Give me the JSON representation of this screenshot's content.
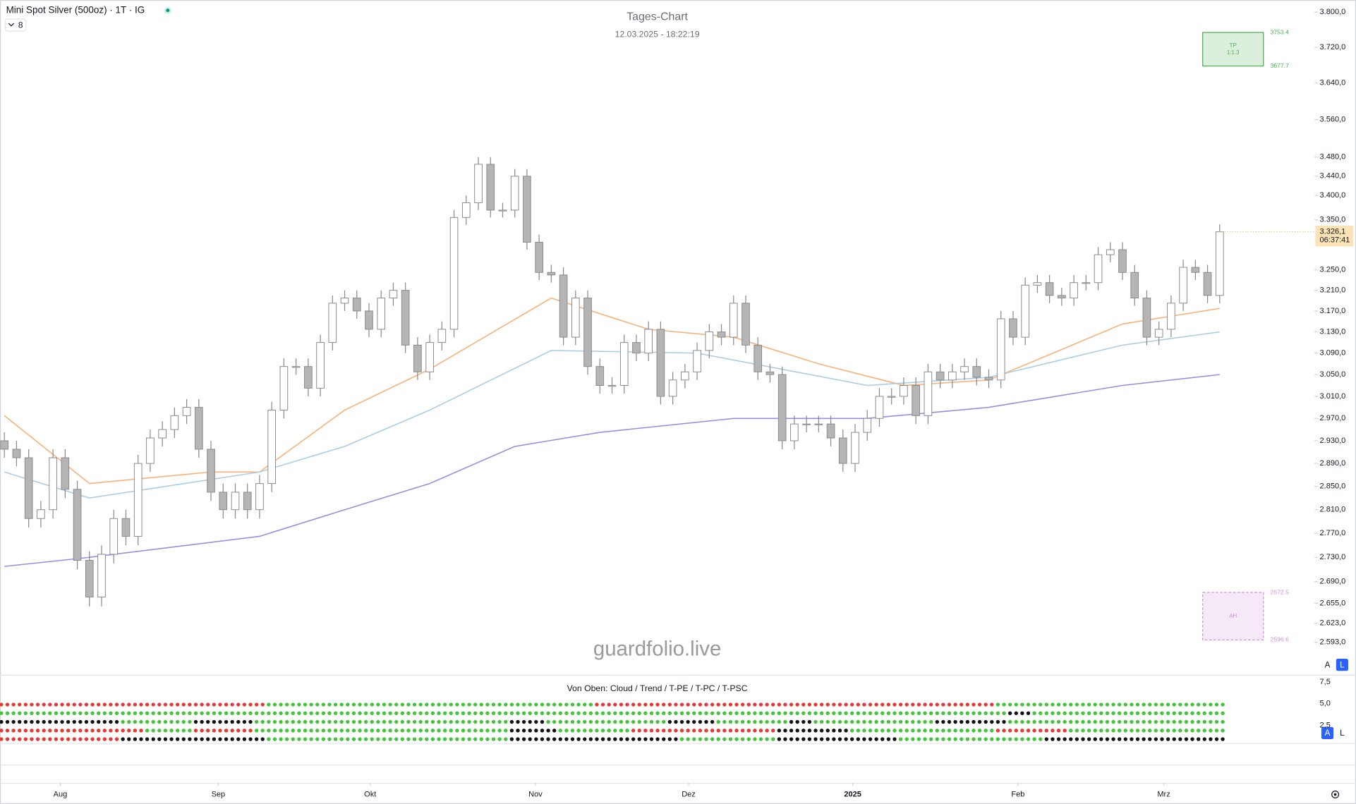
{
  "header": {
    "symbol": "Mini Spot Silver (500oz) · 1T · IG",
    "badge": "8",
    "watermark": "guardfolio.live",
    "buttons": [
      "A",
      "L"
    ]
  },
  "chart_data": {
    "type": "candlestick",
    "title": "Tages-Chart",
    "subtitle": "12.03.2025 - 18:22:19",
    "log_scale": true,
    "up_color": "#ffffff",
    "down_color": "#b5b5b5",
    "wick_color": "#8a8a8a",
    "open": [
      2930,
      2915,
      2900,
      2795,
      2810,
      2900,
      2845,
      2725,
      2665,
      2735,
      2795,
      2765,
      2890,
      2935,
      2950,
      2975,
      2990,
      2915,
      2840,
      2810,
      2840,
      2810,
      2855,
      2985,
      3065,
      3065,
      3025,
      3110,
      3185,
      3195,
      3170,
      3135,
      3195,
      3210,
      3105,
      3055,
      3110,
      3135,
      3355,
      3385,
      3465,
      3370,
      3370,
      3440,
      3305,
      3245,
      3240,
      3120,
      3195,
      3065,
      3030,
      3030,
      3110,
      3090,
      3135,
      3010,
      3040,
      3055,
      3095,
      3130,
      3120,
      3185,
      3105,
      3055,
      3050,
      2930,
      2960,
      2960,
      2960,
      2935,
      2890,
      2945,
      2970,
      3010,
      3010,
      3030,
      2975,
      3055,
      3040,
      3055,
      3065,
      3045,
      3040,
      3155,
      3120,
      3220,
      3225,
      3200,
      3195,
      3225,
      3225,
      3280,
      3290,
      3245,
      3195,
      3120,
      3135,
      3185,
      3255,
      3245,
      3200
    ],
    "high": [
      2945,
      2930,
      2915,
      2825,
      2915,
      2915,
      2860,
      2740,
      2750,
      2810,
      2810,
      2905,
      2950,
      2965,
      2990,
      3005,
      3005,
      2930,
      2855,
      2855,
      2855,
      2870,
      3000,
      3080,
      3080,
      3080,
      3125,
      3200,
      3210,
      3210,
      3185,
      3210,
      3225,
      3225,
      3120,
      3125,
      3150,
      3370,
      3400,
      3480,
      3480,
      3385,
      3455,
      3455,
      3320,
      3260,
      3255,
      3210,
      3210,
      3080,
      3045,
      3125,
      3125,
      3150,
      3150,
      3055,
      3070,
      3110,
      3145,
      3145,
      3200,
      3200,
      3120,
      3070,
      3065,
      2975,
      2975,
      2975,
      2975,
      2950,
      2960,
      2985,
      3025,
      3025,
      3045,
      3045,
      3070,
      3070,
      3070,
      3080,
      3080,
      3060,
      3170,
      3170,
      3235,
      3240,
      3240,
      3215,
      3240,
      3240,
      3295,
      3305,
      3305,
      3260,
      3210,
      3150,
      3200,
      3270,
      3270,
      3260,
      3341
    ],
    "low": [
      2900,
      2885,
      2780,
      2780,
      2795,
      2830,
      2710,
      2650,
      2650,
      2720,
      2750,
      2750,
      2875,
      2920,
      2935,
      2960,
      2900,
      2825,
      2795,
      2795,
      2795,
      2795,
      2840,
      2970,
      3050,
      3010,
      3010,
      3095,
      3170,
      3155,
      3120,
      3120,
      3180,
      3090,
      3040,
      3040,
      3095,
      3120,
      3340,
      3370,
      3355,
      3355,
      3355,
      3290,
      3230,
      3225,
      3105,
      3105,
      3050,
      3015,
      3015,
      3015,
      3075,
      3075,
      2995,
      2995,
      3025,
      3040,
      3080,
      3105,
      3105,
      3090,
      3040,
      3035,
      2915,
      2915,
      2945,
      2945,
      2920,
      2875,
      2875,
      2930,
      2955,
      2995,
      2995,
      2960,
      2960,
      3025,
      3025,
      3040,
      3030,
      3025,
      3025,
      3105,
      3105,
      3205,
      3185,
      3180,
      3180,
      3210,
      3210,
      3265,
      3230,
      3180,
      3105,
      3105,
      3120,
      3170,
      3230,
      3185,
      3185
    ],
    "close": [
      2915,
      2900,
      2795,
      2810,
      2900,
      2845,
      2725,
      2665,
      2735,
      2795,
      2765,
      2890,
      2935,
      2950,
      2975,
      2990,
      2915,
      2840,
      2810,
      2840,
      2810,
      2855,
      2985,
      3065,
      3065,
      3025,
      3110,
      3185,
      3195,
      3170,
      3135,
      3195,
      3210,
      3105,
      3055,
      3110,
      3135,
      3355,
      3385,
      3465,
      3370,
      3370,
      3440,
      3305,
      3245,
      3240,
      3120,
      3195,
      3065,
      3030,
      3030,
      3110,
      3090,
      3135,
      3010,
      3040,
      3055,
      3095,
      3130,
      3120,
      3185,
      3105,
      3055,
      3050,
      2930,
      2960,
      2960,
      2960,
      2935,
      2890,
      2945,
      2970,
      3010,
      3010,
      3030,
      2975,
      3055,
      3040,
      3055,
      3065,
      3045,
      3040,
      3155,
      3120,
      3220,
      3225,
      3200,
      3195,
      3225,
      3225,
      3280,
      3290,
      3245,
      3195,
      3120,
      3135,
      3185,
      3255,
      3245,
      3200,
      3326
    ],
    "xlim": [
      -0.36,
      107.8
    ],
    "xticks": [
      {
        "value": 4.6,
        "label": "Aug"
      },
      {
        "value": 17.6,
        "label": "Sep"
      },
      {
        "value": 30.1,
        "label": "Okt"
      },
      {
        "value": 43.7,
        "label": "Nov"
      },
      {
        "value": 56.3,
        "label": "Dez"
      },
      {
        "value": 69.8,
        "label": "2025"
      },
      {
        "value": 83.4,
        "label": "Feb"
      },
      {
        "value": 95.4,
        "label": "Mrz"
      }
    ],
    "ylim": [
      2543,
      3828
    ],
    "yticks": [
      {
        "value": 3800,
        "label": "3.800,0"
      },
      {
        "value": 3720,
        "label": "3.720,0"
      },
      {
        "value": 3640,
        "label": "3.640,0"
      },
      {
        "value": 3560,
        "label": "3.560,0"
      },
      {
        "value": 3480,
        "label": "3.480,0"
      },
      {
        "value": 3440,
        "label": "3.440,0"
      },
      {
        "value": 3400,
        "label": "3.400,0"
      },
      {
        "value": 3350,
        "label": "3.350,0"
      },
      {
        "value": 3250,
        "label": "3.250,0"
      },
      {
        "value": 3210,
        "label": "3.210,0"
      },
      {
        "value": 3170,
        "label": "3.170,0"
      },
      {
        "value": 3130,
        "label": "3.130,0"
      },
      {
        "value": 3090,
        "label": "3.090,0"
      },
      {
        "value": 3050,
        "label": "3.050,0"
      },
      {
        "value": 3010,
        "label": "3.010,0"
      },
      {
        "value": 2970,
        "label": "2.970,0"
      },
      {
        "value": 2930,
        "label": "2.930,0"
      },
      {
        "value": 2890,
        "label": "2.890,0"
      },
      {
        "value": 2850,
        "label": "2.850,0"
      },
      {
        "value": 2810,
        "label": "2.810,0"
      },
      {
        "value": 2770,
        "label": "2.770,0"
      },
      {
        "value": 2730,
        "label": "2.730,0"
      },
      {
        "value": 2690,
        "label": "2.690,0"
      },
      {
        "value": 2655,
        "label": "2.655,0"
      },
      {
        "value": 2623,
        "label": "2.623,0"
      },
      {
        "value": 2593,
        "label": "2.593,0"
      }
    ],
    "last_price": {
      "value": 3326.1,
      "label": "3.326,1"
    },
    "countdown": "06:37:41",
    "overlays": [
      {
        "color": "#f7b27a",
        "x": [
          0,
          7,
          17,
          21,
          28,
          35,
          45,
          53,
          60,
          67,
          74,
          81,
          92,
          100
        ],
        "values": [
          2975,
          2855,
          2875,
          2875,
          2985,
          3060,
          3195,
          3135,
          3120,
          3070,
          3030,
          3040,
          3145,
          3175
        ]
      },
      {
        "color": "#a9cde6",
        "x": [
          0,
          7,
          21,
          28,
          35,
          45,
          57,
          71,
          81,
          92,
          100
        ],
        "values": [
          2875,
          2830,
          2875,
          2920,
          2985,
          3095,
          3090,
          3030,
          3045,
          3105,
          3130
        ]
      },
      {
        "color": "#9c8ce0",
        "x": [
          0,
          7,
          21,
          28,
          35,
          42,
          49,
          60,
          71,
          81,
          92,
          100
        ],
        "values": [
          2715,
          2730,
          2765,
          2810,
          2855,
          2920,
          2945,
          2970,
          2970,
          2990,
          3030,
          3050
        ]
      }
    ],
    "zones": [
      {
        "top": 3753.4,
        "bottom": 3677.7,
        "text": [
          "TP",
          "1:1.3"
        ],
        "color": "#4caf50"
      },
      {
        "top": 2672.5,
        "bottom": 2596.6,
        "text": [
          "AH"
        ],
        "color": "#ce93d8"
      }
    ],
    "indicator": {
      "title": "Von Oben: Cloud / Trend / T-PE / T-PC / T-PSC",
      "ylim": [
        0.4,
        8.3
      ],
      "yticks": [
        {
          "value": 7.5,
          "label": "7,5"
        },
        {
          "value": 5,
          "label": "5,0"
        },
        {
          "value": 2.5,
          "label": "2,5"
        }
      ],
      "colors": {
        "r": "#e53935",
        "g": "#43c53a",
        "k": "#111111"
      },
      "rows": [
        [
          [
            "r",
            22
          ],
          [
            "g",
            27
          ],
          [
            "r",
            33
          ],
          [
            "g",
            19
          ]
        ],
        [
          [
            "g",
            83
          ],
          [
            "k",
            2
          ],
          [
            "g",
            16
          ]
        ],
        [
          [
            "k",
            10
          ],
          [
            "g",
            6
          ],
          [
            "k",
            5
          ],
          [
            "g",
            21
          ],
          [
            "k",
            3
          ],
          [
            "g",
            10
          ],
          [
            "k",
            4
          ],
          [
            "g",
            6
          ],
          [
            "k",
            2
          ],
          [
            "g",
            10
          ],
          [
            "k",
            6
          ],
          [
            "g",
            18
          ]
        ],
        [
          [
            "r",
            12
          ],
          [
            "g",
            4
          ],
          [
            "r",
            5
          ],
          [
            "g",
            21
          ],
          [
            "k",
            4
          ],
          [
            "g",
            6
          ],
          [
            "r",
            12
          ],
          [
            "k",
            6
          ],
          [
            "g",
            12
          ],
          [
            "r",
            6
          ],
          [
            "g",
            13
          ]
        ],
        [
          [
            "r",
            10
          ],
          [
            "k",
            12
          ],
          [
            "g",
            20
          ],
          [
            "k",
            14
          ],
          [
            "g",
            8
          ],
          [
            "k",
            10
          ],
          [
            "g",
            12
          ],
          [
            "k",
            15
          ]
        ]
      ]
    }
  }
}
